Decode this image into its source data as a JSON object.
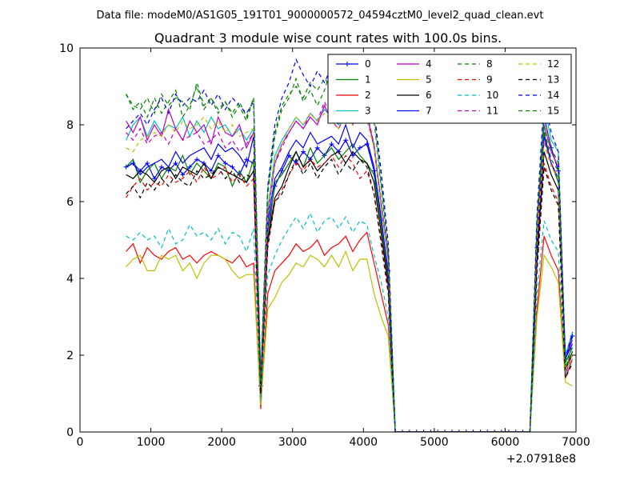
{
  "figure": {
    "suptitle": "Data file: modeM0/AS1G05_191T01_9000000572_04594cztM0_level2_quad_clean.evt"
  },
  "chart_data": {
    "type": "line",
    "title": "Quadrant 3 module wise count rates with 100.0s bins.",
    "xlabel": "",
    "ylabel": "",
    "x_offset_text": "+2.07918e8",
    "xlim": [
      0,
      7000
    ],
    "ylim": [
      0,
      10
    ],
    "xticks": [
      0,
      1000,
      2000,
      3000,
      4000,
      5000,
      6000,
      7000
    ],
    "yticks": [
      0,
      2,
      4,
      6,
      8,
      10
    ],
    "x": [
      650,
      750,
      850,
      950,
      1050,
      1150,
      1250,
      1350,
      1450,
      1550,
      1650,
      1750,
      1850,
      1950,
      2050,
      2150,
      2250,
      2350,
      2450,
      2550,
      2650,
      2750,
      2850,
      2950,
      3050,
      3150,
      3250,
      3350,
      3450,
      3550,
      3650,
      3750,
      3850,
      3950,
      4050,
      4150,
      4250,
      4350,
      4450,
      4550,
      4650,
      4750,
      4850,
      4950,
      5050,
      5150,
      5250,
      5350,
      5450,
      5550,
      5650,
      5750,
      5850,
      5950,
      6050,
      6150,
      6250,
      6350,
      6450,
      6550,
      6650,
      6750,
      6850,
      6950
    ],
    "grid": false,
    "legend_position": "top-right",
    "series": [
      {
        "name": "0",
        "color": "#0000ff",
        "style": "solid",
        "marker": "+",
        "values": [
          6.9,
          7.0,
          6.8,
          7.0,
          6.6,
          6.9,
          6.8,
          7.0,
          6.7,
          6.9,
          7.1,
          7.0,
          6.8,
          7.2,
          7.0,
          6.9,
          6.7,
          7.1,
          7.0,
          1.2,
          5.3,
          6.4,
          6.8,
          7.2,
          7.0,
          7.3,
          7.1,
          7.4,
          7.2,
          7.5,
          7.3,
          7.6,
          7.2,
          7.4,
          7.5,
          6.8,
          5.5,
          4.2,
          0.0,
          0.0,
          0.0,
          0.0,
          0.0,
          0.0,
          0.0,
          0.0,
          0.0,
          0.0,
          0.0,
          0.0,
          0.0,
          0.0,
          0.0,
          0.0,
          0.0,
          0.0,
          0.0,
          0.0,
          4.8,
          8.2,
          7.4,
          6.8,
          1.9,
          2.5
        ]
      },
      {
        "name": "1",
        "color": "#008000",
        "style": "solid",
        "values": [
          6.9,
          7.1,
          6.5,
          6.8,
          7.0,
          6.6,
          6.9,
          6.8,
          7.2,
          6.7,
          7.0,
          6.8,
          6.6,
          7.0,
          6.9,
          6.4,
          6.8,
          6.5,
          7.1,
          1.0,
          5.0,
          6.5,
          6.7,
          7.0,
          7.3,
          6.9,
          7.4,
          7.0,
          7.2,
          7.4,
          7.1,
          7.3,
          7.5,
          7.2,
          7.0,
          6.7,
          5.4,
          3.9,
          0.0,
          0.0,
          0.0,
          0.0,
          0.0,
          0.0,
          0.0,
          0.0,
          0.0,
          0.0,
          0.0,
          0.0,
          0.0,
          0.0,
          0.0,
          0.0,
          0.0,
          0.0,
          0.0,
          0.0,
          4.6,
          7.8,
          7.0,
          6.5,
          1.8,
          2.2
        ]
      },
      {
        "name": "2",
        "color": "#ff0000",
        "style": "solid",
        "values": [
          4.7,
          4.9,
          4.4,
          4.8,
          4.6,
          4.5,
          4.7,
          4.8,
          4.5,
          4.6,
          4.4,
          4.6,
          4.7,
          4.6,
          4.5,
          4.4,
          4.6,
          4.3,
          4.4,
          0.6,
          3.6,
          4.2,
          4.4,
          4.6,
          4.9,
          4.7,
          4.8,
          5.0,
          4.6,
          4.8,
          4.9,
          5.1,
          4.7,
          5.0,
          5.2,
          4.4,
          3.6,
          2.8,
          0.0,
          0.0,
          0.0,
          0.0,
          0.0,
          0.0,
          0.0,
          0.0,
          0.0,
          0.0,
          0.0,
          0.0,
          0.0,
          0.0,
          0.0,
          0.0,
          0.0,
          0.0,
          0.0,
          0.0,
          3.2,
          5.1,
          4.6,
          4.2,
          1.4,
          1.9
        ]
      },
      {
        "name": "3",
        "color": "#00bfbf",
        "style": "solid",
        "values": [
          7.6,
          8.0,
          8.2,
          7.7,
          8.1,
          7.8,
          8.0,
          7.9,
          8.2,
          7.7,
          8.1,
          7.8,
          8.2,
          7.9,
          8.0,
          7.7,
          7.9,
          7.6,
          7.9,
          1.3,
          5.8,
          7.2,
          7.6,
          7.9,
          8.2,
          8.0,
          8.3,
          8.1,
          8.4,
          8.2,
          8.0,
          8.3,
          8.1,
          8.4,
          8.2,
          7.5,
          6.0,
          4.6,
          0.0,
          0.0,
          0.0,
          0.0,
          0.0,
          0.0,
          0.0,
          0.0,
          0.0,
          0.0,
          0.0,
          0.0,
          0.0,
          0.0,
          0.0,
          0.0,
          0.0,
          0.0,
          0.0,
          0.0,
          5.2,
          8.5,
          7.6,
          7.3,
          2.0,
          2.6
        ]
      },
      {
        "name": "4",
        "color": "#bf00bf",
        "style": "solid",
        "values": [
          8.1,
          7.8,
          8.2,
          7.6,
          8.0,
          7.7,
          8.4,
          7.9,
          7.6,
          8.1,
          7.8,
          8.0,
          7.5,
          8.2,
          7.8,
          7.7,
          8.0,
          7.4,
          7.8,
          1.2,
          5.7,
          7.0,
          7.5,
          7.8,
          8.1,
          7.9,
          8.2,
          8.0,
          8.5,
          8.1,
          7.9,
          8.3,
          8.0,
          8.5,
          8.3,
          7.4,
          5.9,
          4.5,
          0.0,
          0.0,
          0.0,
          0.0,
          0.0,
          0.0,
          0.0,
          0.0,
          0.0,
          0.0,
          0.0,
          0.0,
          0.0,
          0.0,
          0.0,
          0.0,
          0.0,
          0.0,
          0.0,
          0.0,
          5.1,
          8.0,
          7.3,
          6.9,
          1.9,
          2.4
        ]
      },
      {
        "name": "5",
        "color": "#bfbf00",
        "style": "solid",
        "values": [
          4.3,
          4.5,
          4.6,
          4.2,
          4.2,
          4.6,
          4.5,
          4.6,
          4.2,
          4.4,
          4.0,
          4.4,
          4.6,
          4.6,
          4.5,
          4.2,
          4.0,
          4.1,
          4.1,
          0.7,
          3.2,
          3.5,
          3.9,
          4.1,
          4.4,
          4.3,
          4.6,
          4.5,
          4.3,
          4.6,
          4.3,
          4.7,
          4.2,
          4.5,
          4.5,
          3.6,
          3.0,
          2.5,
          0.0,
          0.0,
          0.0,
          0.0,
          0.0,
          0.0,
          0.0,
          0.0,
          0.0,
          0.0,
          0.0,
          0.0,
          0.0,
          0.0,
          0.0,
          0.0,
          0.0,
          0.0,
          0.0,
          0.0,
          3.0,
          4.6,
          4.3,
          3.9,
          1.3,
          1.2
        ]
      },
      {
        "name": "6",
        "color": "#000000",
        "style": "solid",
        "values": [
          6.7,
          6.6,
          6.8,
          6.7,
          6.5,
          6.8,
          6.9,
          6.6,
          6.9,
          6.8,
          6.7,
          7.0,
          6.6,
          6.9,
          6.8,
          6.7,
          6.6,
          6.5,
          6.8,
          0.9,
          5.0,
          6.1,
          6.4,
          6.9,
          7.3,
          6.9,
          7.1,
          6.8,
          7.0,
          7.2,
          7.3,
          7.0,
          7.3,
          7.1,
          7.0,
          6.5,
          5.2,
          3.8,
          0.0,
          0.0,
          0.0,
          0.0,
          0.0,
          0.0,
          0.0,
          0.0,
          0.0,
          0.0,
          0.0,
          0.0,
          0.0,
          0.0,
          0.0,
          0.0,
          0.0,
          0.0,
          0.0,
          0.0,
          4.5,
          7.3,
          6.7,
          6.3,
          1.6,
          2.1
        ]
      },
      {
        "name": "7",
        "color": "#0000ff",
        "style": "solid",
        "values": [
          6.9,
          7.0,
          6.7,
          6.9,
          7.0,
          7.1,
          6.9,
          7.3,
          7.0,
          7.2,
          7.3,
          7.4,
          7.1,
          7.5,
          7.3,
          7.4,
          7.2,
          6.9,
          7.7,
          1.1,
          5.5,
          6.6,
          6.9,
          7.3,
          7.6,
          7.4,
          7.8,
          7.5,
          7.6,
          7.7,
          7.5,
          8.0,
          7.4,
          7.8,
          7.6,
          6.9,
          5.6,
          4.1,
          0.0,
          0.0,
          0.0,
          0.0,
          0.0,
          0.0,
          0.0,
          0.0,
          0.0,
          0.0,
          0.0,
          0.0,
          0.0,
          0.0,
          0.0,
          0.0,
          0.0,
          0.0,
          0.0,
          0.0,
          4.9,
          7.7,
          7.0,
          6.6,
          1.9,
          2.3
        ]
      },
      {
        "name": "8",
        "color": "#008000",
        "style": "dashed",
        "values": [
          8.8,
          8.5,
          8.4,
          8.7,
          8.3,
          8.8,
          8.5,
          8.7,
          8.6,
          8.4,
          9.1,
          8.5,
          8.7,
          8.4,
          8.6,
          8.3,
          8.6,
          8.2,
          8.7,
          1.4,
          6.3,
          7.8,
          8.5,
          8.8,
          9.0,
          8.7,
          9.1,
          8.9,
          9.2,
          9.0,
          8.8,
          9.1,
          8.9,
          9.2,
          9.0,
          8.3,
          6.5,
          4.9,
          0.0,
          0.0,
          0.0,
          0.0,
          0.0,
          0.0,
          0.0,
          0.0,
          0.0,
          0.0,
          0.0,
          0.0,
          0.0,
          0.0,
          0.0,
          0.0,
          0.0,
          0.0,
          0.0,
          0.0,
          5.6,
          7.9,
          7.1,
          6.8,
          1.7,
          2.1
        ]
      },
      {
        "name": "9",
        "color": "#ff0000",
        "style": "dashed",
        "values": [
          6.1,
          6.4,
          6.6,
          6.3,
          6.5,
          6.4,
          6.7,
          6.5,
          6.6,
          6.8,
          6.5,
          6.9,
          6.6,
          6.7,
          6.9,
          6.5,
          6.7,
          6.4,
          6.6,
          1.0,
          4.9,
          6.0,
          6.3,
          6.7,
          7.0,
          6.8,
          7.1,
          6.9,
          7.0,
          7.2,
          6.9,
          7.2,
          7.0,
          6.6,
          6.8,
          6.2,
          5.0,
          3.7,
          0.0,
          0.0,
          0.0,
          0.0,
          0.0,
          0.0,
          0.0,
          0.0,
          0.0,
          0.0,
          0.0,
          0.0,
          0.0,
          0.0,
          0.0,
          0.0,
          0.0,
          0.0,
          0.0,
          0.0,
          4.3,
          7.0,
          6.4,
          6.0,
          1.6,
          2.0
        ]
      },
      {
        "name": "10",
        "color": "#00bfbf",
        "style": "dashed",
        "values": [
          5.1,
          5.0,
          5.2,
          5.0,
          5.1,
          4.8,
          5.3,
          4.9,
          5.0,
          5.4,
          5.1,
          5.2,
          5.0,
          5.3,
          4.9,
          5.2,
          5.1,
          4.7,
          5.3,
          0.8,
          4.1,
          4.6,
          5.0,
          5.3,
          5.6,
          5.3,
          5.7,
          5.2,
          5.5,
          5.6,
          5.3,
          5.6,
          5.2,
          5.5,
          5.4,
          4.6,
          3.9,
          3.0,
          0.0,
          0.0,
          0.0,
          0.0,
          0.0,
          0.0,
          0.0,
          0.0,
          0.0,
          0.0,
          0.0,
          0.0,
          0.0,
          0.0,
          0.0,
          0.0,
          0.0,
          0.0,
          0.0,
          0.0,
          3.6,
          5.5,
          5.0,
          4.7,
          1.5,
          1.9
        ]
      },
      {
        "name": "11",
        "color": "#bf00bf",
        "style": "dashed",
        "values": [
          7.8,
          7.6,
          7.9,
          7.5,
          7.7,
          7.8,
          7.5,
          7.9,
          7.6,
          7.7,
          7.8,
          7.5,
          7.6,
          7.8,
          7.4,
          7.6,
          7.3,
          7.5,
          7.8,
          1.2,
          5.6,
          7.0,
          7.4,
          7.8,
          8.1,
          7.9,
          8.3,
          8.1,
          8.6,
          8.2,
          8.0,
          8.4,
          8.1,
          8.5,
          8.3,
          7.5,
          6.0,
          4.5,
          0.0,
          0.0,
          0.0,
          0.0,
          0.0,
          0.0,
          0.0,
          0.0,
          0.0,
          0.0,
          0.0,
          0.0,
          0.0,
          0.0,
          0.0,
          0.0,
          0.0,
          0.0,
          0.0,
          0.0,
          5.0,
          7.6,
          7.0,
          6.6,
          1.5,
          2.0
        ]
      },
      {
        "name": "12",
        "color": "#bfbf00",
        "style": "dashed",
        "values": [
          7.4,
          7.3,
          7.6,
          7.7,
          7.8,
          7.7,
          8.0,
          7.8,
          8.1,
          7.9,
          8.0,
          8.2,
          7.9,
          8.1,
          7.8,
          8.0,
          7.7,
          7.8,
          7.9,
          1.2,
          5.7,
          7.1,
          7.5,
          7.9,
          8.2,
          8.0,
          8.3,
          8.1,
          8.3,
          8.1,
          7.9,
          8.3,
          8.0,
          8.3,
          8.1,
          7.4,
          5.9,
          4.4,
          0.0,
          0.0,
          0.0,
          0.0,
          0.0,
          0.0,
          0.0,
          0.0,
          0.0,
          0.0,
          0.0,
          0.0,
          0.0,
          0.0,
          0.0,
          0.0,
          0.0,
          0.0,
          0.0,
          0.0,
          5.1,
          7.5,
          6.9,
          6.6,
          1.6,
          2.0
        ]
      },
      {
        "name": "13",
        "color": "#000000",
        "style": "dashed",
        "values": [
          6.2,
          6.4,
          6.1,
          6.5,
          6.3,
          6.6,
          6.4,
          6.7,
          6.5,
          6.4,
          6.8,
          6.6,
          6.7,
          6.9,
          6.6,
          6.8,
          6.5,
          6.7,
          6.6,
          1.0,
          4.8,
          6.0,
          6.2,
          6.7,
          7.1,
          6.7,
          7.0,
          6.6,
          6.9,
          7.1,
          6.7,
          7.0,
          6.8,
          7.1,
          6.9,
          6.2,
          4.9,
          3.6,
          0.0,
          0.0,
          0.0,
          0.0,
          0.0,
          0.0,
          0.0,
          0.0,
          0.0,
          0.0,
          0.0,
          0.0,
          0.0,
          0.0,
          0.0,
          0.0,
          0.0,
          0.0,
          0.0,
          0.0,
          4.2,
          6.9,
          6.3,
          5.9,
          1.4,
          1.8
        ]
      },
      {
        "name": "14",
        "color": "#0000ff",
        "style": "dashed",
        "values": [
          7.9,
          8.1,
          8.3,
          8.0,
          8.4,
          8.7,
          8.3,
          8.8,
          8.5,
          8.7,
          8.6,
          8.9,
          8.5,
          8.8,
          8.4,
          8.7,
          8.5,
          8.3,
          8.6,
          1.4,
          6.4,
          8.0,
          8.7,
          9.1,
          9.7,
          9.3,
          9.0,
          9.4,
          9.1,
          9.5,
          9.2,
          9.6,
          9.1,
          9.4,
          9.2,
          8.4,
          6.8,
          4.9,
          0.0,
          0.0,
          0.0,
          0.0,
          0.0,
          0.0,
          0.0,
          0.0,
          0.0,
          0.0,
          0.0,
          0.0,
          0.0,
          0.0,
          0.0,
          0.0,
          0.0,
          0.0,
          0.0,
          0.0,
          5.7,
          8.7,
          7.8,
          7.3,
          1.9,
          2.6
        ]
      },
      {
        "name": "15",
        "color": "#008000",
        "style": "dashed",
        "values": [
          8.8,
          8.4,
          8.6,
          8.2,
          8.7,
          8.3,
          8.6,
          8.9,
          8.2,
          8.5,
          9.0,
          8.4,
          8.7,
          8.3,
          8.6,
          8.2,
          8.5,
          8.1,
          8.7,
          1.3,
          6.2,
          7.7,
          8.4,
          8.7,
          9.2,
          8.6,
          8.9,
          8.5,
          8.9,
          9.5,
          8.8,
          9.2,
          8.9,
          9.1,
          8.8,
          8.1,
          6.4,
          4.7,
          0.0,
          0.0,
          0.0,
          0.0,
          0.0,
          0.0,
          0.0,
          0.0,
          0.0,
          0.0,
          0.0,
          0.0,
          0.0,
          0.0,
          0.0,
          0.0,
          0.0,
          0.0,
          0.0,
          0.0,
          5.5,
          8.2,
          7.4,
          7.0,
          1.6,
          2.3
        ]
      }
    ]
  }
}
